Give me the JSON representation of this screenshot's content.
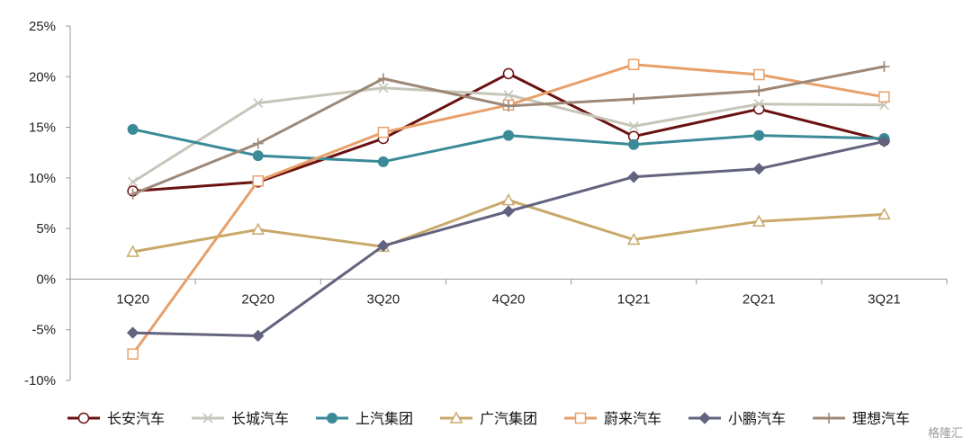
{
  "chart_data": {
    "type": "line",
    "categories": [
      "1Q20",
      "2Q20",
      "3Q20",
      "4Q20",
      "1Q21",
      "2Q21",
      "3Q21"
    ],
    "y_unit": "%",
    "ylim": [
      -10,
      25
    ],
    "yticks": [
      -10,
      -5,
      0,
      5,
      10,
      15,
      20,
      25
    ],
    "ytick_labels": [
      "-10%",
      "-5%",
      "0%",
      "5%",
      "10%",
      "15%",
      "20%",
      "25%"
    ],
    "grid": false,
    "legend_position": "bottom",
    "series": [
      {
        "name": "长安汽车",
        "color": "#6b1010",
        "marker": "circle-open",
        "values": [
          8.7,
          9.6,
          13.9,
          20.3,
          14.1,
          16.8,
          13.7
        ]
      },
      {
        "name": "长城汽车",
        "color": "#c6c5b8",
        "marker": "x",
        "values": [
          9.6,
          17.4,
          18.9,
          18.2,
          15.1,
          17.3,
          17.2
        ]
      },
      {
        "name": "上汽集团",
        "color": "#3a8a98",
        "marker": "circle",
        "values": [
          14.8,
          12.2,
          11.6,
          14.2,
          13.3,
          14.2,
          13.9
        ]
      },
      {
        "name": "广汽集团",
        "color": "#c8a96a",
        "marker": "triangle-open",
        "values": [
          2.7,
          4.9,
          3.2,
          7.8,
          3.9,
          5.7,
          6.4
        ]
      },
      {
        "name": "蔚来汽车",
        "color": "#e8a06a",
        "marker": "square-open",
        "values": [
          -7.4,
          9.7,
          14.5,
          17.2,
          21.2,
          20.2,
          18.0
        ]
      },
      {
        "name": "小鹏汽车",
        "color": "#62637e",
        "marker": "diamond",
        "values": [
          -5.3,
          -5.6,
          3.3,
          6.7,
          10.1,
          10.9,
          13.6
        ]
      },
      {
        "name": "理想汽车",
        "color": "#9e8877",
        "marker": "plus",
        "values": [
          8.4,
          13.4,
          19.8,
          17.1,
          17.8,
          18.6,
          21.0
        ]
      }
    ]
  },
  "watermark": "格隆汇"
}
